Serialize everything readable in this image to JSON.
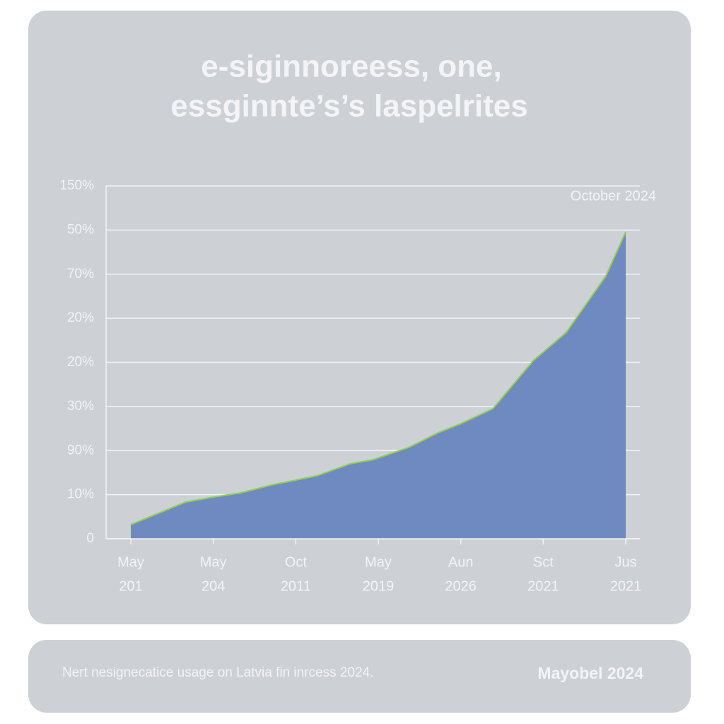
{
  "chart_data": {
    "type": "area",
    "title": [
      "e-siginnoreess, one,",
      "essginnte’s’s laspelrites"
    ],
    "annotation": "October 2024",
    "y_labels": [
      "0",
      "10%",
      "90%",
      "30%",
      "20%",
      "20%",
      "70%",
      "50%",
      "150%"
    ],
    "ylim": [
      0,
      8
    ],
    "categories": [
      [
        "May",
        "201"
      ],
      [
        "May",
        "204"
      ],
      [
        "Oct",
        "2011"
      ],
      [
        "May",
        "2019"
      ],
      [
        "Aun",
        "2026"
      ],
      [
        "Sct",
        "2021"
      ],
      [
        "Jus",
        "2021"
      ]
    ],
    "xlim": [
      0,
      6
    ],
    "x": [
      0,
      0.66,
      1.02,
      1.33,
      1.73,
      1.95,
      2.26,
      2.66,
      2.93,
      3.37,
      3.72,
      3.99,
      4.39,
      4.88,
      5.28,
      5.76,
      6.0
    ],
    "values": [
      0.32,
      0.83,
      0.95,
      1.04,
      1.23,
      1.31,
      1.43,
      1.7,
      1.79,
      2.07,
      2.4,
      2.6,
      2.95,
      4.04,
      4.68,
      5.96,
      6.96
    ],
    "color": "#6f8ac0",
    "line_color": "#8fd04f",
    "grid": true,
    "footer": {
      "caption": "Nert nesignecatice usage on Latvia fin inrcess 2024.",
      "date": "Mayobel 2024"
    }
  }
}
